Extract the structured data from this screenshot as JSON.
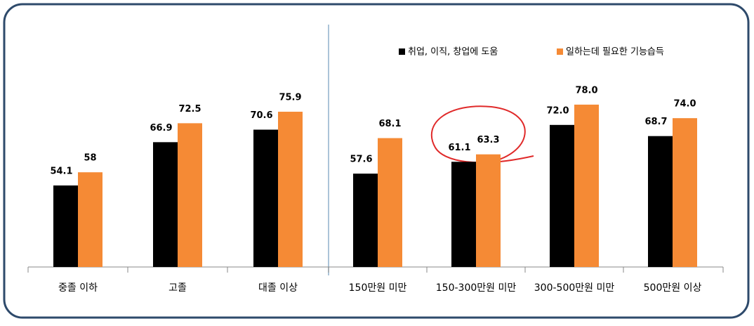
{
  "chart_data": {
    "type": "bar",
    "categories": [
      "중졸 이하",
      "고졸",
      "대졸 이상",
      "150만원 미만",
      "150-300만원 미만",
      "300-500만원 미만",
      "500만원 이상"
    ],
    "series": [
      {
        "name": "취업, 이직, 창업에 도움",
        "color": "#000000",
        "values": [
          54.1,
          66.9,
          70.6,
          57.6,
          61.1,
          72,
          68.7
        ],
        "value_labels": [
          "54.1",
          "66.9",
          "70.6",
          "57.6",
          "61.1",
          "72.0",
          "68.7"
        ]
      },
      {
        "name": "일하는데 필요한 기능습득",
        "color": "#f58a35",
        "values": [
          58,
          72.5,
          75.9,
          68.1,
          63.3,
          78,
          74
        ],
        "value_labels": [
          "58",
          "72.5",
          "75.9",
          "68.1",
          "63.3",
          "78.0",
          "74.0"
        ]
      }
    ],
    "ylim": [
      30,
      100
    ]
  }
}
